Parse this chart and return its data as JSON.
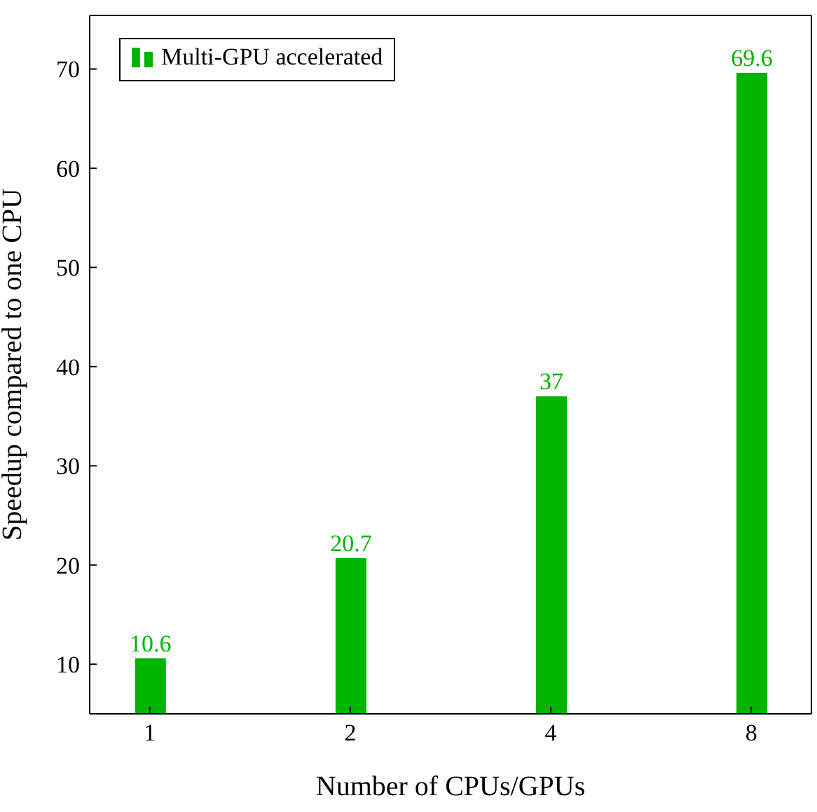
{
  "chart_data": {
    "type": "bar",
    "xlabel": "Number of CPUs/GPUs",
    "ylabel": "Speedup compared to one CPU",
    "categories": [
      "1",
      "2",
      "4",
      "8"
    ],
    "series": [
      {
        "name": "Multi-GPU accelerated",
        "color": "#00b400",
        "values": [
          10.6,
          20.7,
          37,
          69.6
        ]
      }
    ],
    "ylim": [
      5,
      75.4
    ],
    "yticks": [
      10,
      20,
      30,
      40,
      50,
      60,
      70
    ],
    "legend": "top left",
    "data_labels": true
  }
}
